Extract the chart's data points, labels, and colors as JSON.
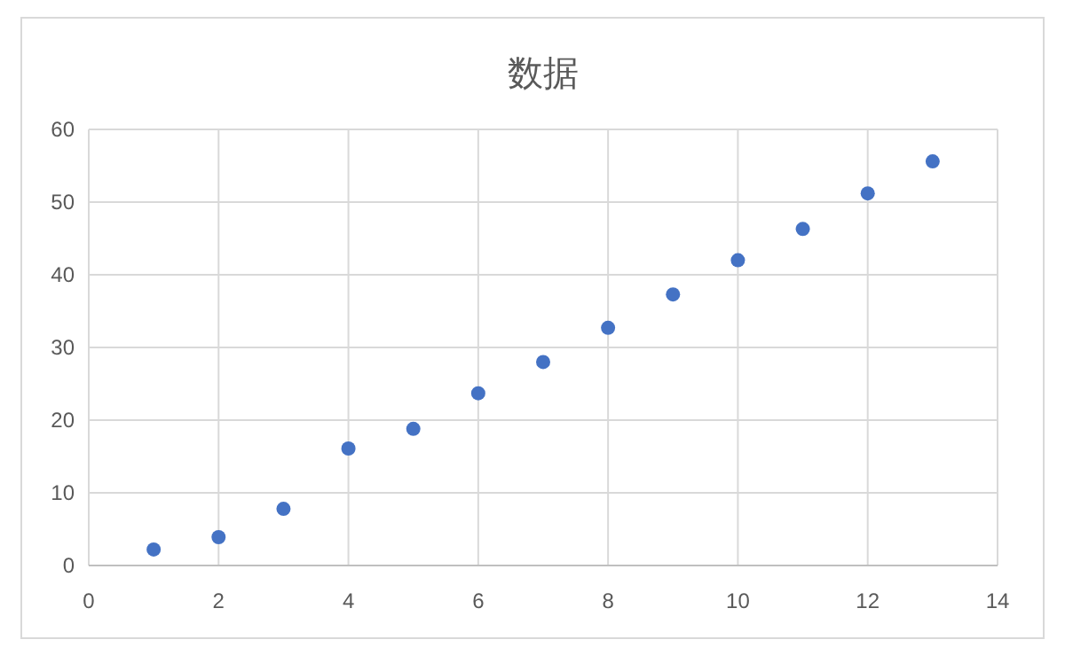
{
  "chart_data": {
    "type": "scatter",
    "title": "数据",
    "x": [
      1,
      2,
      3,
      4,
      5,
      6,
      7,
      8,
      9,
      10,
      11,
      12,
      13
    ],
    "series": [
      {
        "color": "#4472c4",
        "values": [
          2.2,
          3.9,
          7.8,
          16.1,
          18.8,
          23.7,
          28.0,
          32.7,
          37.3,
          42.0,
          46.3,
          51.2,
          55.6
        ]
      }
    ],
    "xlim": [
      0,
      14
    ],
    "xticks": [
      0,
      2,
      4,
      6,
      8,
      10,
      12,
      14
    ],
    "ylim": [
      0,
      60
    ],
    "yticks": [
      0,
      10,
      20,
      30,
      40,
      50,
      60
    ],
    "grid": true,
    "marker": "circle"
  }
}
